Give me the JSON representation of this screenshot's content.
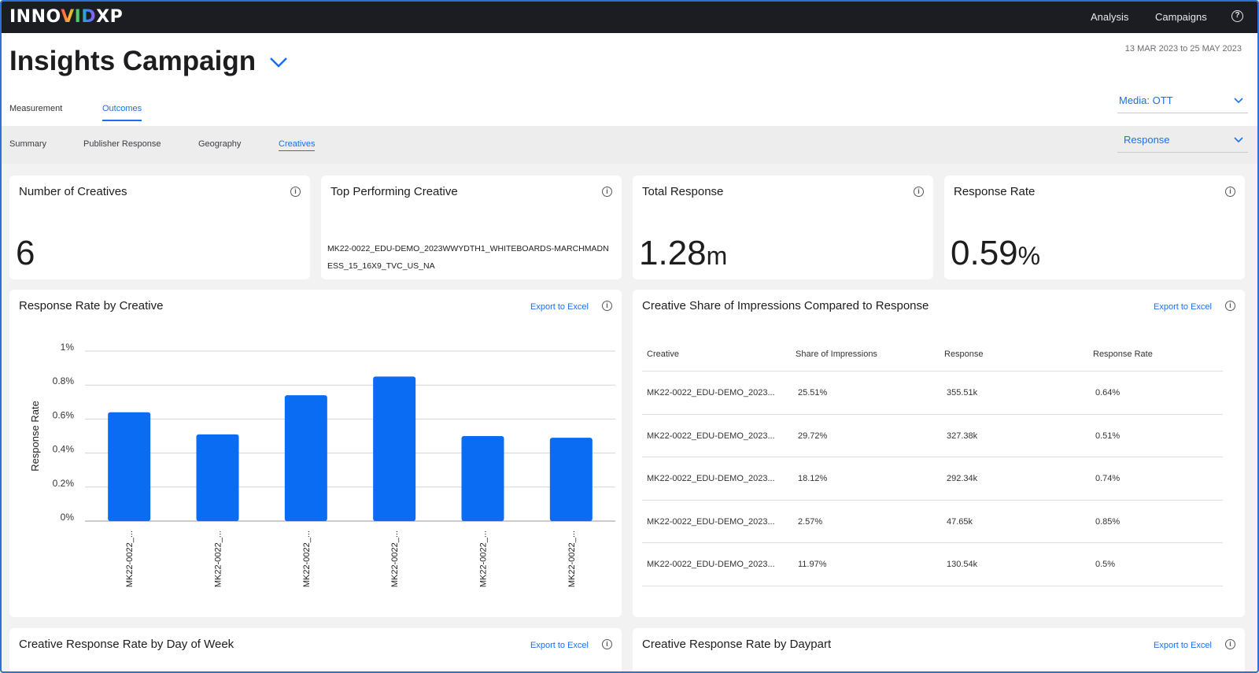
{
  "brand": {
    "logo_left": "INNO",
    "logo_mid": "VID",
    "logo_right": "XP"
  },
  "topnav": {
    "analysis": "Analysis",
    "campaigns": "Campaigns",
    "help": "?"
  },
  "header": {
    "title": "Insights Campaign",
    "date_range": "13 MAR 2023 to 25 MAY 2023",
    "tabs": [
      {
        "label": "Measurement"
      },
      {
        "label": "Outcomes"
      }
    ],
    "media_select": "Media:  OTT"
  },
  "subtabs": [
    {
      "label": "Summary"
    },
    {
      "label": "Publisher Response"
    },
    {
      "label": "Geography"
    },
    {
      "label": "Creatives"
    }
  ],
  "response_select": "Response",
  "kpis": {
    "num_creatives": {
      "title": "Number of Creatives",
      "value": "6"
    },
    "top_creative": {
      "title": "Top Performing Creative",
      "value": "MK22-0022_EDU-DEMO_2023WWYDTH1_WHITEBOARDS-MARCHMADNESS_15_16X9_TVC_US_NA"
    },
    "total_response": {
      "title": "Total Response",
      "value": "1.28",
      "unit": "m"
    },
    "response_rate": {
      "title": "Response Rate",
      "value": "0.59",
      "unit": "%"
    }
  },
  "export_label": "Export to Excel",
  "chart_card": {
    "title": "Response Rate by Creative"
  },
  "chart_data": {
    "type": "bar",
    "title": "Response Rate by Creative",
    "ylabel": "Response Rate",
    "xlabel": "",
    "categories": [
      "MK22-0022_...",
      "MK22-0022_...",
      "MK22-0022_...",
      "MK22-0022_...",
      "MK22-0022_...",
      "MK22-0022_..."
    ],
    "values": [
      0.64,
      0.51,
      0.74,
      0.85,
      0.5,
      0.49
    ],
    "ylim": [
      0,
      1
    ],
    "yticks": [
      "0%",
      "0.2%",
      "0.4%",
      "0.6%",
      "0.8%",
      "1%"
    ],
    "grid": true,
    "color": "#0a6cf2"
  },
  "table_card": {
    "title": "Creative Share of Impressions Compared to Response",
    "columns": [
      "Creative",
      "Share of Impressions",
      "Response",
      "Response Rate"
    ],
    "rows": [
      [
        "MK22-0022_EDU-DEMO_2023...",
        "25.51%",
        "355.51k",
        "0.64%"
      ],
      [
        "MK22-0022_EDU-DEMO_2023...",
        "29.72%",
        "327.38k",
        "0.51%"
      ],
      [
        "MK22-0022_EDU-DEMO_2023...",
        "18.12%",
        "292.34k",
        "0.74%"
      ],
      [
        "MK22-0022_EDU-DEMO_2023...",
        "2.57%",
        "47.65k",
        "0.85%"
      ],
      [
        "MK22-0022_EDU-DEMO_2023...",
        "11.97%",
        "130.54k",
        "0.5%"
      ]
    ]
  },
  "bottom_cards": {
    "day_of_week": "Creative Response Rate by Day of Week",
    "daypart": "Creative Response Rate by Daypart"
  }
}
